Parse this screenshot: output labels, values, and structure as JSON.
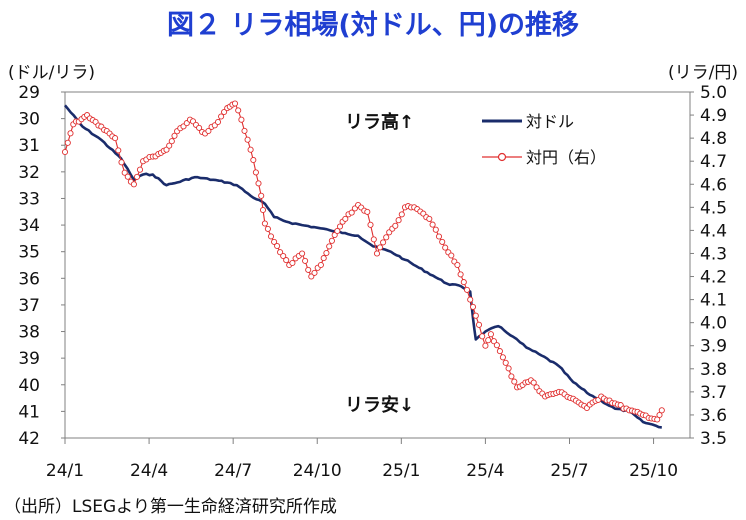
{
  "chart_data": {
    "type": "line",
    "title": "図２ リラ相場(対ドル、円)の推移",
    "source": "（出所）LSEGより第一生命経済研究所作成",
    "left_axis": {
      "unit_label": "(ドル/リラ)",
      "range": [
        29,
        42
      ],
      "inverted": true,
      "ticks": [
        "29",
        "30",
        "31",
        "32",
        "33",
        "34",
        "35",
        "36",
        "37",
        "38",
        "39",
        "40",
        "41",
        "42"
      ]
    },
    "right_axis": {
      "unit_label": "(リラ/円)",
      "range": [
        3.5,
        5.0
      ],
      "inverted": false,
      "ticks": [
        "5.0",
        "4.9",
        "4.8",
        "4.7",
        "4.6",
        "4.5",
        "4.4",
        "4.3",
        "4.2",
        "4.1",
        "4.0",
        "3.9",
        "3.8",
        "3.7",
        "3.6",
        "3.5"
      ]
    },
    "x_axis": {
      "ticks": [
        "24/1",
        "24/4",
        "24/7",
        "24/10",
        "25/1",
        "25/4",
        "25/7",
        "25/10"
      ],
      "range_months": [
        "2024-01",
        "2025-10"
      ]
    },
    "annotations": {
      "top": "リラ高↑",
      "bottom": "リラ安↓"
    },
    "legend_position": "top-right",
    "grid": false,
    "series": [
      {
        "name": "対ドル",
        "axis": "left",
        "color": "#1a2c6b",
        "marker": "none",
        "x": [
          "2024-01-01",
          "2024-01-20",
          "2024-02-10",
          "2024-03-01",
          "2024-03-15",
          "2024-03-25",
          "2024-04-05",
          "2024-04-20",
          "2024-05-01",
          "2024-05-20",
          "2024-06-10",
          "2024-06-25",
          "2024-07-05",
          "2024-07-20",
          "2024-08-05",
          "2024-08-15",
          "2024-09-01",
          "2024-09-15",
          "2024-10-01",
          "2024-10-15",
          "2024-11-01",
          "2024-11-15",
          "2024-12-01",
          "2024-12-20",
          "2025-01-05",
          "2025-01-20",
          "2025-02-05",
          "2025-02-20",
          "2025-03-05",
          "2025-03-15",
          "2025-03-18",
          "2025-03-21",
          "2025-04-01",
          "2025-04-15",
          "2025-05-01",
          "2025-05-15",
          "2025-06-01",
          "2025-06-20",
          "2025-07-05",
          "2025-07-20",
          "2025-08-05",
          "2025-08-20",
          "2025-09-05",
          "2025-09-20",
          "2025-10-10"
        ],
        "y": [
          29.5,
          30.3,
          30.8,
          31.5,
          32.3,
          32.1,
          32.1,
          32.5,
          32.4,
          32.2,
          32.3,
          32.4,
          32.5,
          32.9,
          33.2,
          33.7,
          33.9,
          34.0,
          34.1,
          34.2,
          34.3,
          34.4,
          34.8,
          35.0,
          35.3,
          35.6,
          35.9,
          36.2,
          36.3,
          36.5,
          37.5,
          38.3,
          38.0,
          37.8,
          38.2,
          38.6,
          38.9,
          39.3,
          39.9,
          40.3,
          40.6,
          40.9,
          41.0,
          41.4,
          41.6
        ]
      },
      {
        "name": "対円（右）",
        "axis": "right",
        "color": "#e03030",
        "marker": "circle",
        "x": [
          "2024-01-01",
          "2024-01-10",
          "2024-01-25",
          "2024-02-10",
          "2024-02-25",
          "2024-03-05",
          "2024-03-15",
          "2024-03-25",
          "2024-04-05",
          "2024-04-20",
          "2024-05-01",
          "2024-05-15",
          "2024-06-01",
          "2024-06-15",
          "2024-06-25",
          "2024-07-03",
          "2024-07-10",
          "2024-07-20",
          "2024-08-01",
          "2024-08-05",
          "2024-08-15",
          "2024-09-01",
          "2024-09-15",
          "2024-09-25",
          "2024-10-05",
          "2024-10-20",
          "2024-11-01",
          "2024-11-15",
          "2024-11-25",
          "2024-12-05",
          "2024-12-15",
          "2024-12-25",
          "2025-01-05",
          "2025-01-15",
          "2025-02-01",
          "2025-02-15",
          "2025-03-01",
          "2025-03-15",
          "2025-03-21",
          "2025-04-01",
          "2025-04-07",
          "2025-04-20",
          "2025-05-05",
          "2025-05-20",
          "2025-06-05",
          "2025-06-20",
          "2025-07-05",
          "2025-07-20",
          "2025-08-05",
          "2025-08-20",
          "2025-09-05",
          "2025-09-20",
          "2025-10-05",
          "2025-10-10"
        ],
        "y": [
          4.74,
          4.86,
          4.9,
          4.85,
          4.8,
          4.65,
          4.6,
          4.7,
          4.72,
          4.75,
          4.83,
          4.88,
          4.82,
          4.87,
          4.93,
          4.95,
          4.88,
          4.75,
          4.55,
          4.43,
          4.35,
          4.25,
          4.3,
          4.2,
          4.25,
          4.38,
          4.45,
          4.51,
          4.48,
          4.3,
          4.37,
          4.42,
          4.5,
          4.5,
          4.45,
          4.35,
          4.25,
          4.1,
          4.03,
          3.9,
          3.95,
          3.85,
          3.72,
          3.75,
          3.68,
          3.7,
          3.67,
          3.63,
          3.68,
          3.65,
          3.62,
          3.6,
          3.58,
          3.62
        ]
      }
    ]
  }
}
